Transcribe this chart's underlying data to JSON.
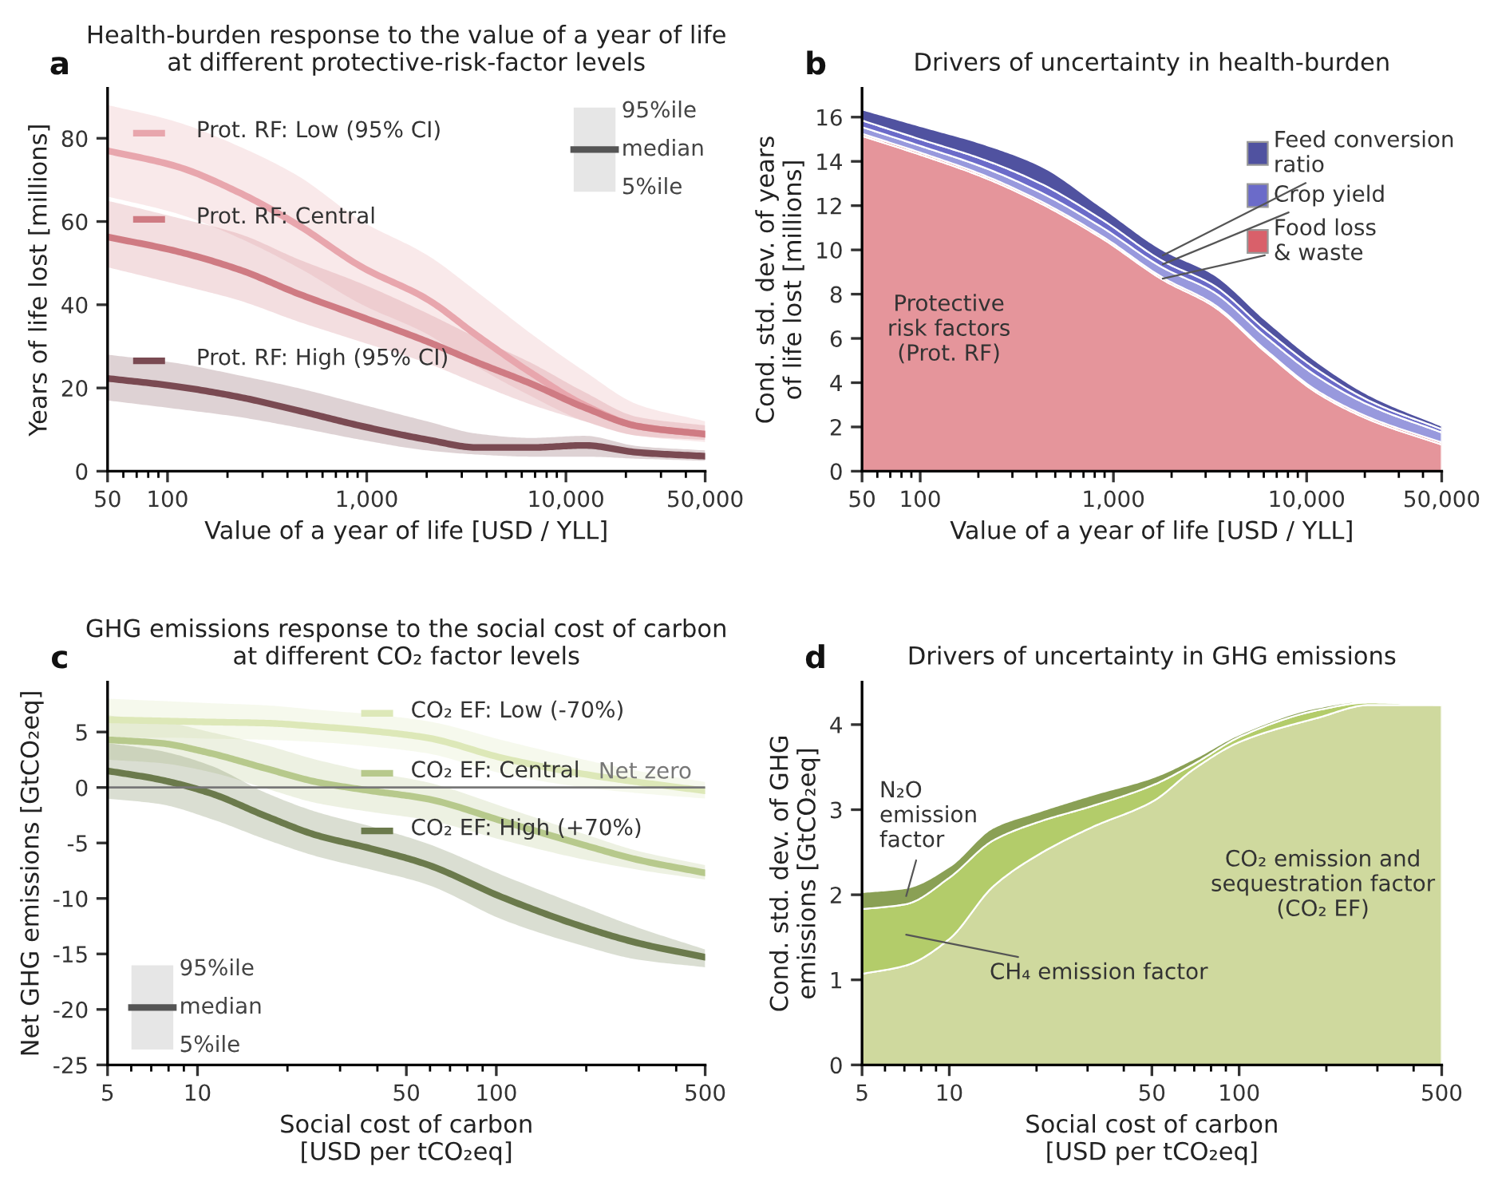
{
  "chart_data": [
    {
      "type": "line",
      "legend": "top left",
      "title": "Health-burden response to the value of a year of life\nat different protective-risk-factor levels",
      "xlabel": "Value of a year of life [USD / YLL]",
      "ylabel": "Years of life lost [millions]",
      "log": "x",
      "xlim": [
        50,
        50000
      ],
      "xticks": [
        50,
        100,
        {
          "value": 1000,
          "label": "1,000"
        },
        {
          "value": 10000,
          "label": "10,000"
        },
        {
          "value": 50000,
          "label": "50,000"
        }
      ],
      "ylim": [
        0,
        92
      ],
      "yticks": [
        0,
        20,
        40,
        60,
        80
      ],
      "x": [
        50,
        110,
        230,
        450,
        950,
        2000,
        3600,
        6700,
        12400,
        23000,
        50000
      ],
      "series": [
        {
          "name": "Prot. RF: Low (95% CI)",
          "color": "#e8a6ad",
          "values": [
            77,
            73.3,
            66.9,
            59.2,
            49,
            41.4,
            32.5,
            23.6,
            15.9,
            10.8,
            8.9
          ],
          "lower": [
            66,
            62,
            56,
            49,
            40,
            33,
            25,
            18,
            12,
            8.5,
            7
          ],
          "upper": [
            88,
            84,
            78,
            71,
            60,
            52,
            43,
            33,
            24,
            16,
            12
          ]
        },
        {
          "name": "Prot. RF: Central",
          "color": "#cf7b83",
          "values": [
            56.3,
            52.9,
            48.4,
            42.7,
            37,
            31.2,
            26.1,
            21,
            15.3,
            10.8,
            8.9
          ],
          "lower": [
            49,
            45,
            41,
            36,
            31,
            26,
            21,
            16,
            12,
            8.5,
            7.5
          ],
          "upper": [
            65,
            61,
            57,
            51,
            45,
            38,
            32,
            26,
            19,
            13,
            11
          ]
        },
        {
          "name": "Prot. RF: High (95% CI)",
          "color": "#7a4a52",
          "values": [
            22.3,
            20.4,
            17.8,
            14.6,
            10.8,
            7.6,
            5.7,
            5.7,
            6.2,
            4.5,
            3.6
          ],
          "lower": [
            17,
            15,
            13,
            10.5,
            7.5,
            5,
            4,
            3.5,
            3.5,
            3,
            2.5
          ],
          "upper": [
            28,
            26,
            23,
            20,
            16,
            12,
            9,
            8,
            8.5,
            6,
            5
          ]
        }
      ],
      "annotations": [
        "a",
        "95%ile",
        "median",
        "5%ile"
      ]
    },
    {
      "type": "area",
      "stacked": true,
      "legend": "top right",
      "title": "Drivers of uncertainty in health-burden",
      "xlabel": "Value of a year of life [USD / YLL]",
      "ylabel": "Cond. std. dev. of years\nof life lost [millions]",
      "log": "x",
      "xlim": [
        50,
        50000
      ],
      "xticks": [
        50,
        100,
        {
          "value": 1000,
          "label": "1,000"
        },
        {
          "value": 10000,
          "label": "10,000"
        },
        {
          "value": 50000,
          "label": "50,000"
        }
      ],
      "ylim": [
        0,
        17.3
      ],
      "yticks": [
        0,
        2,
        4,
        6,
        8,
        10,
        12,
        14,
        16
      ],
      "x": [
        50,
        100,
        210,
        420,
        880,
        1800,
        3300,
        6100,
        11500,
        21500,
        50000
      ],
      "series": [
        {
          "name": "Protective\nrisk factors\n(Prot. RF)",
          "color": "#e5959b",
          "values": [
            15.15,
            14.3,
            13.3,
            12.1,
            10.5,
            8.65,
            7.45,
            5.4,
            3.5,
            2.3,
            1.2
          ]
        },
        {
          "name": "Food loss\n& waste",
          "color": "#d9606a",
          "values": [
            0.1,
            0.1,
            0.1,
            0.1,
            0.1,
            0.1,
            0.1,
            0.1,
            0.1,
            0.1,
            0.1
          ]
        },
        {
          "color": "#9899dd",
          "values": [
            0.3,
            0.3,
            0.35,
            0.4,
            0.4,
            0.45,
            0.55,
            0.6,
            0.65,
            0.55,
            0.45
          ]
        },
        {
          "name": "Crop yield",
          "color": "#6b6bc9",
          "values": [
            0.3,
            0.3,
            0.35,
            0.4,
            0.35,
            0.3,
            0.3,
            0.3,
            0.3,
            0.2,
            0.15
          ]
        },
        {
          "name": "Feed conversion\nratio",
          "color": "#5052a0",
          "values": [
            0.5,
            0.6,
            0.7,
            0.8,
            0.55,
            0.5,
            0.5,
            0.45,
            0.35,
            0.25,
            0.15
          ]
        }
      ],
      "annotations": [
        "b"
      ]
    },
    {
      "type": "line",
      "legend": "top",
      "title": "GHG emissions response to the social cost of carbon\nat different CO₂ factor levels",
      "xlabel": "Social cost of carbon\n[USD per tCO₂eq]",
      "ylabel": "Net GHG emissions [GtCO₂eq]",
      "log": "x",
      "xlim": [
        5,
        500
      ],
      "xticks": [
        5,
        10,
        50,
        100,
        500
      ],
      "ylim": [
        -25,
        9.5
      ],
      "yticks": [
        -25,
        -20,
        -15,
        -10,
        -5,
        0,
        5
      ],
      "x": [
        5,
        7.5,
        11,
        17,
        25,
        38,
        58,
        107,
        197,
        296,
        500
      ],
      "series": [
        {
          "name": "CO₂ EF: Low (-70%)",
          "color": "#dde8b8",
          "values": [
            6.1,
            6.0,
            5.9,
            5.8,
            5.5,
            5.1,
            4.5,
            2.6,
            1.2,
            0.5,
            -0.3
          ],
          "lower": [
            4.5,
            4.5,
            4.4,
            4.3,
            4.1,
            3.7,
            3.1,
            1.2,
            0,
            -0.5,
            -1
          ],
          "upper": [
            8,
            7.8,
            7.6,
            7.4,
            7,
            6.6,
            6,
            4.2,
            2.5,
            1.5,
            0.5
          ]
        },
        {
          "name": "CO₂ EF: Central",
          "color": "#b7c98c",
          "values": [
            4.3,
            4.0,
            3.1,
            1.7,
            0.5,
            -0.3,
            -1.0,
            -3.1,
            -5.2,
            -6.5,
            -7.7
          ],
          "lower": [
            2.5,
            2.2,
            1.4,
            -0.1,
            -1.4,
            -2.2,
            -2.9,
            -4.8,
            -6.5,
            -7.4,
            -8.3
          ],
          "upper": [
            6.5,
            6,
            5,
            3.8,
            2.5,
            1.4,
            0.5,
            -1.8,
            -4.2,
            -5.7,
            -7
          ]
        },
        {
          "name": "CO₂ EF: High (+70%)",
          "color": "#6b7a4c",
          "values": [
            1.5,
            0.7,
            -0.5,
            -2.6,
            -4.3,
            -5.5,
            -6.9,
            -10,
            -12.6,
            -14,
            -15.3
          ],
          "lower": [
            -1,
            -1.5,
            -2.8,
            -4.7,
            -6.2,
            -7.4,
            -8.7,
            -12,
            -14.3,
            -15.5,
            -16.2
          ],
          "upper": [
            4,
            3.3,
            2,
            -0.5,
            -2.2,
            -3.5,
            -5,
            -8,
            -10.8,
            -12.6,
            -14.6
          ]
        }
      ],
      "ref_lines": [
        {
          "axis": "y",
          "value": 0,
          "label": "Net zero",
          "color": "#777777"
        }
      ],
      "annotations": [
        "c",
        "95%ile",
        "median",
        "5%ile"
      ]
    },
    {
      "type": "area",
      "stacked": true,
      "title": "Drivers of uncertainty in GHG emissions",
      "xlabel": "Social cost of carbon\n[USD per tCO₂eq]",
      "ylabel": "Cond. std. dev. of GHG\nemissions [GtCO₂eq]",
      "log": "x",
      "xlim": [
        5,
        500
      ],
      "xticks": [
        5,
        10,
        50,
        100,
        500
      ],
      "ylim": [
        0,
        4.5
      ],
      "yticks": [
        0,
        1,
        2,
        3,
        4
      ],
      "x": [
        5,
        7.1,
        10,
        14.2,
        20.5,
        30.9,
        50.5,
        70,
        101,
        187,
        282,
        500
      ],
      "series": [
        {
          "name": "CO₂ emission and\nsequestration factor\n(CO₂ EF)",
          "color": "#cfd99e",
          "values": [
            1.07,
            1.17,
            1.48,
            2.1,
            2.48,
            2.79,
            3.1,
            3.48,
            3.8,
            4.08,
            4.23,
            4.23
          ]
        },
        {
          "name": "CH₄ emission factor",
          "color": "#b3cc6a",
          "values": [
            0.76,
            0.72,
            0.72,
            0.54,
            0.38,
            0.25,
            0.19,
            0.06,
            0.06,
            0.09,
            0.03,
            0
          ]
        },
        {
          "name": "N₂O\nemission\nfactor",
          "color": "#8aa055",
          "values": [
            0.2,
            0.19,
            0.13,
            0.15,
            0.12,
            0.13,
            0.09,
            0.06,
            0.03,
            0.03,
            0.02,
            0
          ]
        }
      ],
      "annotations": [
        "d"
      ]
    }
  ]
}
